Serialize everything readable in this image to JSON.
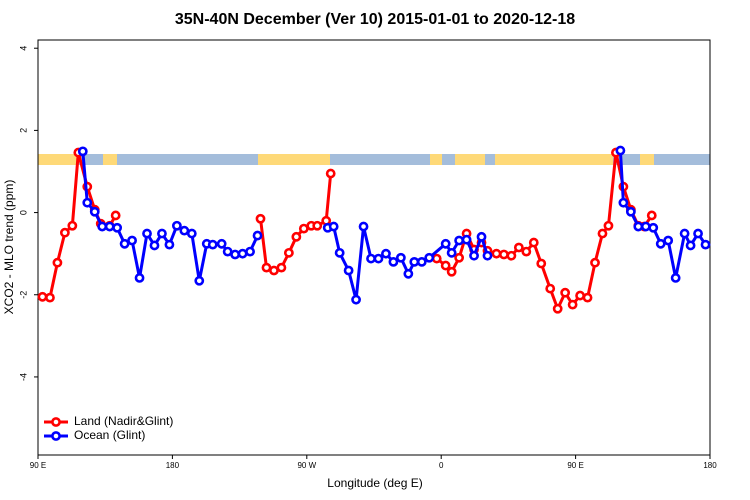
{
  "chart_data": {
    "type": "line",
    "title": "35N-40N December (Ver 10)   2015-01-01 to 2020-12-18",
    "x_label": "Longitude (deg E)",
    "y_label": "XCO2 - MLO trend (ppm)",
    "xlim": [
      90,
      540
    ],
    "xticks": [
      {
        "value": 90,
        "label": "90 E"
      },
      {
        "value": 180,
        "label": "180"
      },
      {
        "value": 270,
        "label": "90 W"
      },
      {
        "value": 360,
        "label": "0"
      },
      {
        "value": 450,
        "label": "90 E"
      },
      {
        "value": 540,
        "label": "180"
      }
    ],
    "ylim": [
      -5.9,
      4.2
    ],
    "yticks": [
      -4,
      -2,
      0,
      2,
      4
    ],
    "legend": "bottom left",
    "series": [
      {
        "name": "Land (Nadir&Glint)",
        "color": "#ff0000",
        "x": [
          93,
          98,
          103,
          108,
          113,
          117,
          123,
          128,
          132,
          138,
          142,
          200,
          239,
          243,
          248,
          253,
          258,
          263,
          268,
          273,
          277,
          283,
          286,
          350,
          357,
          363,
          367,
          372,
          377,
          382,
          387,
          391,
          397,
          402,
          407,
          412,
          417,
          422,
          427,
          433,
          438,
          443,
          448,
          453,
          458,
          463,
          468,
          472,
          477,
          482,
          487,
          492,
          496,
          501
        ],
        "values": [
          -2.05,
          -2.07,
          -1.22,
          -0.49,
          -0.32,
          1.46,
          0.63,
          0.07,
          -0.27,
          -0.32,
          -0.07,
          null,
          -0.15,
          -1.34,
          -1.41,
          -1.34,
          -0.98,
          -0.59,
          -0.39,
          -0.32,
          -0.32,
          -0.2,
          0.95,
          null,
          -1.12,
          -1.29,
          -1.44,
          -1.1,
          -0.51,
          -0.9,
          -0.73,
          -0.93,
          -1.0,
          -1.02,
          -1.05,
          -0.85,
          -0.95,
          -0.73,
          -1.24,
          -1.85,
          -2.34,
          -1.95,
          -2.24,
          -2.02,
          -2.07,
          -1.22,
          -0.51,
          -0.32,
          1.46,
          0.63,
          0.07,
          -0.32,
          -0.34,
          -0.07
        ]
      },
      {
        "name": "Ocean (Glint)",
        "color": "#0000ff",
        "x": [
          120,
          123,
          128,
          133,
          138,
          143,
          148,
          153,
          158,
          163,
          168,
          173,
          178,
          183,
          188,
          193,
          198,
          203,
          207,
          213,
          217,
          222,
          227,
          232,
          237,
          260,
          284,
          288,
          292,
          298,
          303,
          308,
          313,
          318,
          323,
          328,
          333,
          338,
          342,
          347,
          352,
          363,
          367,
          372,
          377,
          382,
          387,
          391,
          550,
          480,
          482,
          487,
          492,
          497,
          502,
          507,
          512,
          517,
          523,
          527,
          532,
          537
        ],
        "values": [
          1.49,
          0.24,
          0.02,
          -0.34,
          -0.34,
          -0.37,
          -0.76,
          -0.68,
          -1.59,
          -0.51,
          -0.8,
          -0.51,
          -0.78,
          -0.32,
          -0.44,
          -0.51,
          -1.66,
          -0.76,
          -0.78,
          -0.76,
          -0.95,
          -1.02,
          -1.0,
          -0.95,
          -0.56,
          null,
          -0.37,
          -0.34,
          -0.98,
          -1.41,
          -2.12,
          -0.34,
          -1.12,
          -1.12,
          -1.0,
          -1.2,
          -1.1,
          -1.49,
          -1.2,
          -1.2,
          -1.1,
          -0.76,
          -0.98,
          -0.68,
          -0.66,
          -1.05,
          -0.59,
          -1.05,
          null,
          1.51,
          0.24,
          0.02,
          -0.34,
          -0.34,
          -0.37,
          -0.76,
          -0.68,
          -1.59,
          -0.51,
          -0.8,
          -0.51,
          -0.78
        ]
      }
    ]
  }
}
